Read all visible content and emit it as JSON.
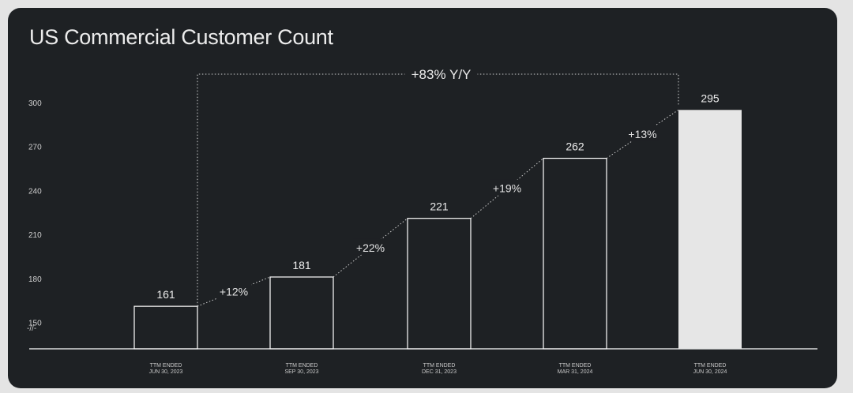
{
  "chart_data": {
    "type": "bar",
    "title": "US Commercial Customer Count",
    "categories": [
      [
        "TTM ENDED",
        "JUN 30, 2023"
      ],
      [
        "TTM ENDED",
        "SEP 30, 2023"
      ],
      [
        "TTM ENDED",
        "DEC 31, 2023"
      ],
      [
        "TTM ENDED",
        "MAR 31, 2024"
      ],
      [
        "TTM ENDED",
        "JUN 30, 2024"
      ]
    ],
    "values": [
      161,
      181,
      221,
      262,
      295
    ],
    "value_labels": [
      "161",
      "181",
      "221",
      "262",
      "295"
    ],
    "growth_labels": [
      "+12%",
      "+22%",
      "+19%",
      "+13%"
    ],
    "yoy_label": "+83% Y/Y",
    "yticks": [
      "300",
      "270",
      "240",
      "210",
      "180",
      "150"
    ],
    "ytick_values": [
      300,
      270,
      240,
      210,
      180,
      150
    ],
    "axis_break": "-//-",
    "ylim": [
      132,
      300
    ],
    "highlight_index": 4,
    "colors": {
      "background": "#1e2124",
      "bar_outline": "#ffffff",
      "highlight_fill": "#e6e6e6",
      "text": "#ececec"
    }
  }
}
